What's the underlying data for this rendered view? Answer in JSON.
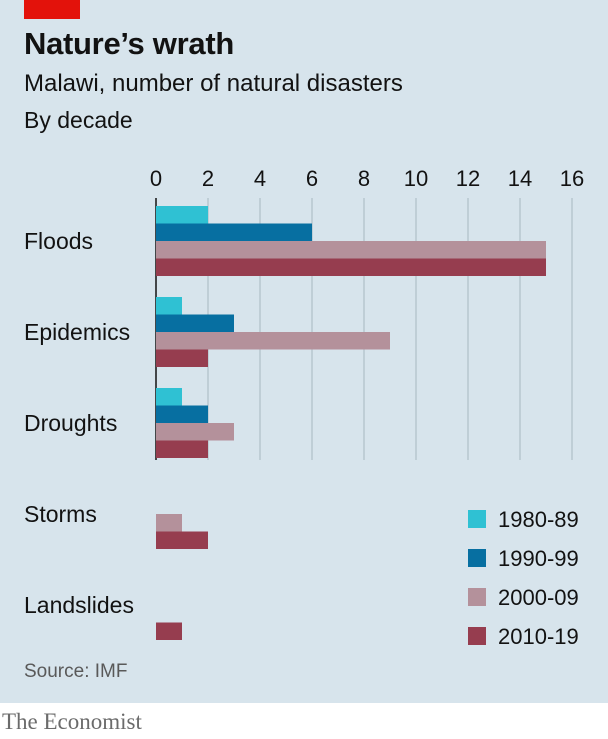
{
  "header": {
    "title": "Nature’s wrath",
    "subtitle": "Malawi, number of natural disasters",
    "unit": "By decade"
  },
  "footer": {
    "source": "Source: IMF",
    "brand": "The Economist"
  },
  "colors": {
    "background": "#d7e4ec",
    "accent_red": "#e3120b"
  },
  "chart_data": {
    "type": "bar",
    "orientation": "horizontal",
    "categories": [
      "Floods",
      "Epidemics",
      "Droughts",
      "Storms",
      "Landslides"
    ],
    "series": [
      {
        "name": "1980-89",
        "color": "#2fc1d3",
        "values": [
          2,
          1,
          1,
          0,
          0
        ]
      },
      {
        "name": "1990-99",
        "color": "#076fa1",
        "values": [
          6,
          3,
          2,
          0,
          0
        ]
      },
      {
        "name": "2000-09",
        "color": "#b4919b",
        "values": [
          15,
          9,
          3,
          1,
          0
        ]
      },
      {
        "name": "2010-19",
        "color": "#963d4f",
        "values": [
          15,
          2,
          2,
          2,
          1
        ]
      }
    ],
    "xlim": [
      0,
      16
    ],
    "xticks": [
      "0",
      "2",
      "4",
      "6",
      "8",
      "10",
      "12",
      "14",
      "16"
    ],
    "grid": true,
    "legend_position": "bottom-right"
  }
}
